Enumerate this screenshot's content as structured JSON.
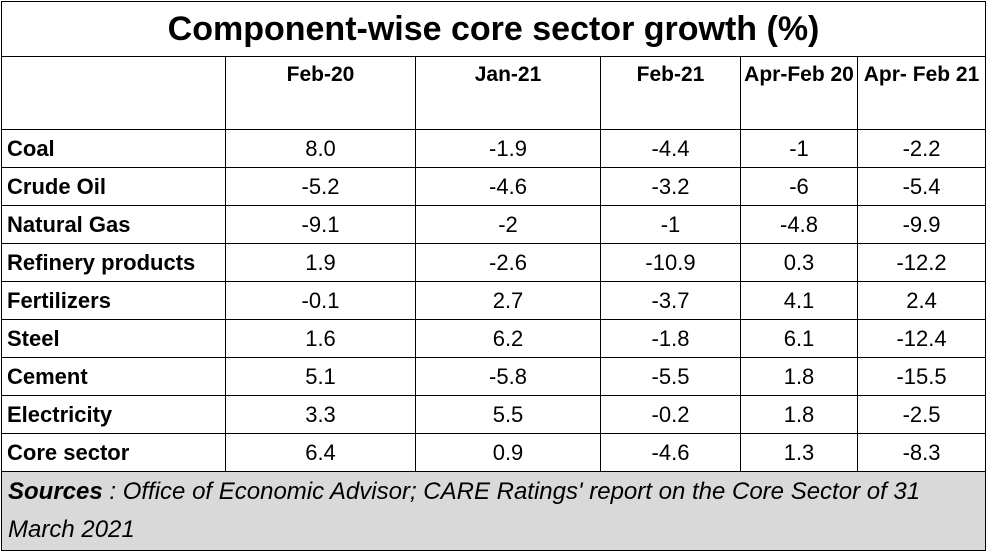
{
  "chart_data": {
    "type": "table",
    "title": "Component-wise core sector growth (%)",
    "columns": [
      "Feb-20",
      "Jan-21",
      "Feb-21",
      "Apr-Feb 20",
      "Apr- Feb 21"
    ],
    "rows": [
      {
        "label": "Coal",
        "values": [
          "8.0",
          "-1.9",
          "-4.4",
          "-1",
          "-2.2"
        ]
      },
      {
        "label": "Crude Oil",
        "values": [
          "-5.2",
          "-4.6",
          "-3.2",
          "-6",
          "-5.4"
        ]
      },
      {
        "label": "Natural Gas",
        "values": [
          "-9.1",
          "-2",
          "-1",
          "-4.8",
          "-9.9"
        ]
      },
      {
        "label": "Refinery products",
        "values": [
          "1.9",
          "-2.6",
          "-10.9",
          "0.3",
          "-12.2"
        ]
      },
      {
        "label": "Fertilizers",
        "values": [
          "-0.1",
          "2.7",
          "-3.7",
          "4.1",
          "2.4"
        ]
      },
      {
        "label": "Steel",
        "values": [
          "1.6",
          "6.2",
          "-1.8",
          "6.1",
          "-12.4"
        ]
      },
      {
        "label": "Cement",
        "values": [
          "5.1",
          "-5.8",
          "-5.5",
          "1.8",
          "-15.5"
        ]
      },
      {
        "label": "Electricity",
        "values": [
          "3.3",
          "5.5",
          "-0.2",
          "1.8",
          "-2.5"
        ]
      },
      {
        "label": "Core sector",
        "values": [
          "6.4",
          "0.9",
          "-4.6",
          "1.3",
          "-8.3"
        ]
      }
    ]
  },
  "source": {
    "label": "Sources",
    "text": " : Office of Economic Advisor; CARE Ratings' report on the Core Sector of 31 March 2021"
  }
}
